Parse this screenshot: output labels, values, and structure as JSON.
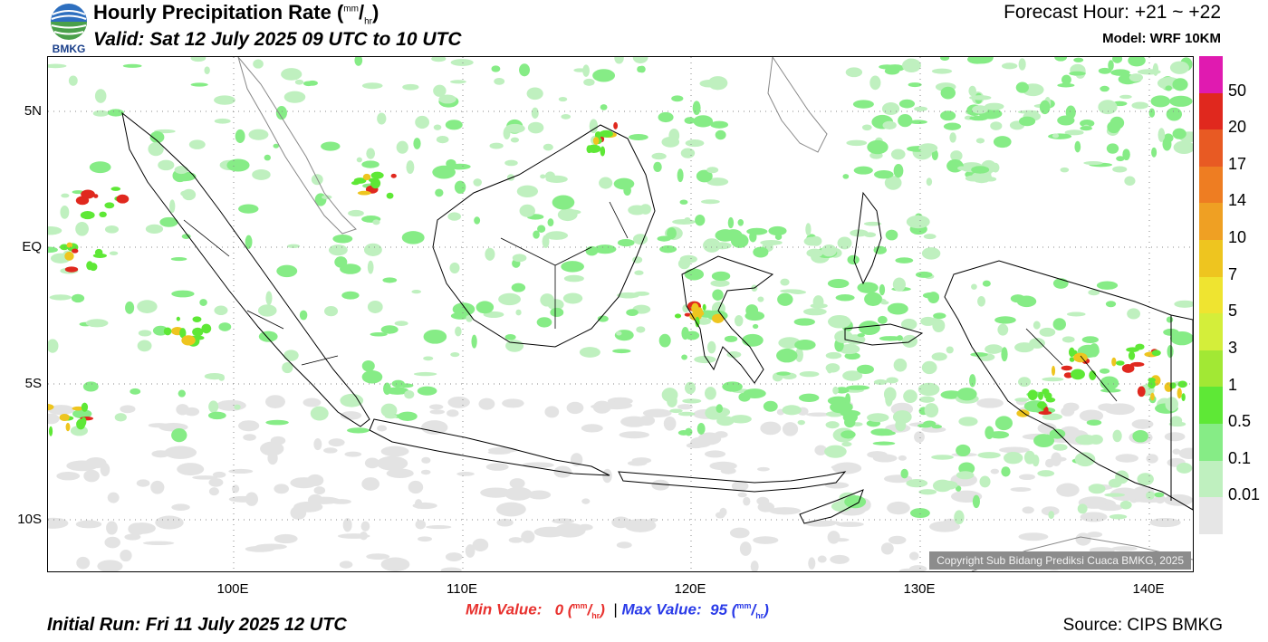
{
  "header": {
    "logo_text": "BMKG",
    "title_main": "Hourly Precipitation Rate (",
    "title_unit_num": "mm",
    "title_unit_den": "hr",
    "title_close": ")",
    "valid": "Valid: Sat 12 July 2025 09 UTC to 10 UTC",
    "forecast_hour": "Forecast Hour: +21 ~ +22",
    "model": "Model: WRF 10KM"
  },
  "axes": {
    "lat_labels": [
      "5N",
      "EQ",
      "5S",
      "10S"
    ],
    "lon_labels": [
      "100E",
      "110E",
      "120E",
      "130E",
      "140E"
    ]
  },
  "colorbar": {
    "labels": [
      "50",
      "20",
      "17",
      "14",
      "10",
      "7",
      "5",
      "3",
      "1",
      "0.5",
      "0.1",
      "0.01"
    ],
    "colors": [
      "#e01ab0",
      "#e0281e",
      "#e85a23",
      "#ee7d22",
      "#efa023",
      "#eec51f",
      "#efe430",
      "#d4ee3a",
      "#a2e834",
      "#5ee836",
      "#86ec86",
      "#bff0bf",
      "#e6e6e6"
    ]
  },
  "footer": {
    "min_label": "Min Value:",
    "min_value": "0",
    "max_label": "Max Value:",
    "max_value": "95",
    "unit_num": "mm",
    "unit_den": "hr",
    "separator": "|",
    "initial_run": "Initial Run: Fri 11 July 2025 12 UTC",
    "source": "Source: CIPS BMKG",
    "copyright": "Copyright Sub Bidang Prediksi Cuaca BMKG, 2025"
  }
}
